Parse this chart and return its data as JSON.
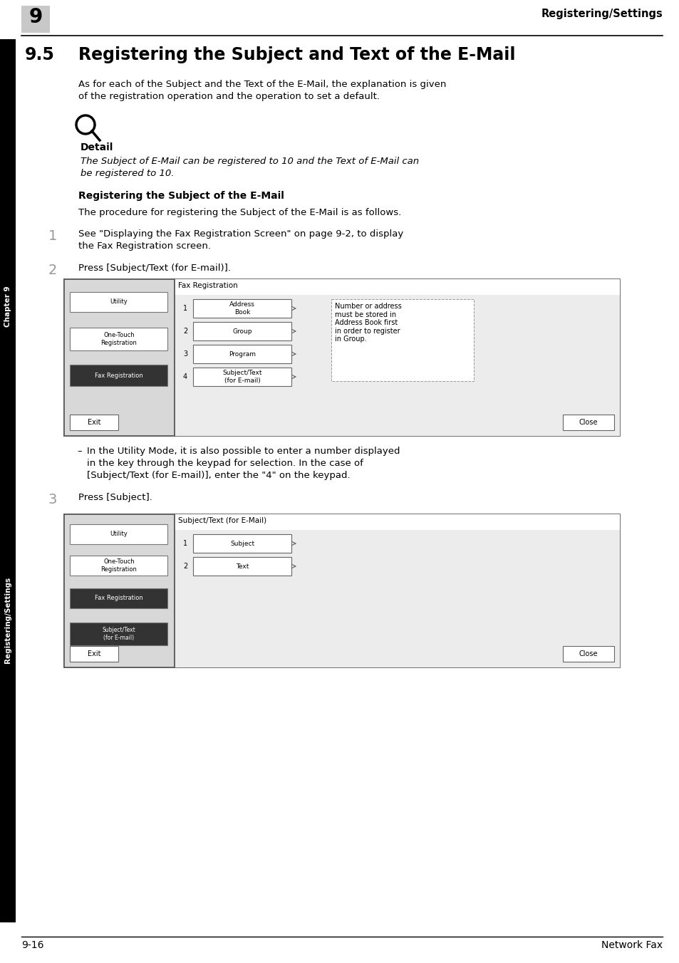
{
  "page_header_num": "9",
  "page_header_text": "Registering/Settings",
  "section_num": "9.5",
  "section_title": "Registering the Subject and Text of the E-Mail",
  "intro_line1": "As for each of the Subject and the Text of the E-Mail, the explanation is given",
  "intro_line2": "of the registration operation and the operation to set a default.",
  "detail_label": "Detail",
  "detail_italic_line1": "The Subject of E-Mail can be registered to 10 and the Text of E-Mail can",
  "detail_italic_line2": "be registered to 10.",
  "subheading": "Registering the Subject of the E-Mail",
  "subheading_intro": "The procedure for registering the Subject of the E-Mail is as follows.",
  "step1_num": "1",
  "step1_line1": "See \"Displaying the Fax Registration Screen\" on page 9-2, to display",
  "step1_line2": "the Fax Registration screen.",
  "step2_num": "2",
  "step2_text": "Press [Subject/Text (for E-mail)].",
  "step3_num": "3",
  "step3_text": "Press [Subject].",
  "note_line1": "In the Utility Mode, it is also possible to enter a number displayed",
  "note_line2": "in the key through the keypad for selection. In the case of",
  "note_line3": "[Subject/Text (for E-mail)], enter the \"4\" on the keypad.",
  "side_label_top": "Chapter 9",
  "side_label_bottom": "Registering/Settings",
  "footer_left": "9-16",
  "footer_right": "Network Fax",
  "bg_color": "#ffffff",
  "sidebar_bg": "#000000",
  "screen1_title": "Fax Registration",
  "screen1_buttons": [
    "Address\nBook",
    "Group",
    "Program",
    "Subject/Text\n(for E-mail)"
  ],
  "screen1_nums": [
    "1",
    "2",
    "3",
    "4"
  ],
  "screen1_left_buttons": [
    "Utility",
    "One-Touch\nRegistration",
    "Fax Registration"
  ],
  "screen1_left_active": [
    false,
    false,
    true
  ],
  "screen1_note": "Number or address\nmust be stored in\nAddress Book first\nin order to register\nin Group.",
  "screen2_title": "Subject/Text (for E-Mail)",
  "screen2_buttons": [
    "Subject",
    "Text"
  ],
  "screen2_nums": [
    "1",
    "2"
  ],
  "screen2_left_buttons": [
    "Utility",
    "One-Touch\nRegistration",
    "Fax Registration",
    "Subject/Text\n(for E-mail)"
  ],
  "screen2_left_active": [
    false,
    false,
    false,
    true
  ]
}
